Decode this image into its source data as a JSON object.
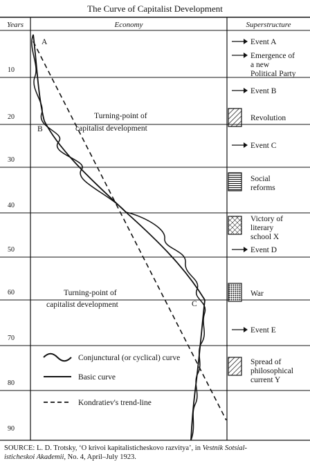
{
  "title": "The Curve of Capitalist Development",
  "headers": {
    "years": "Years",
    "economy": "Economy",
    "superstructure": "Superstructure"
  },
  "year_ticks": [
    "10",
    "20",
    "30",
    "40",
    "50",
    "60",
    "70",
    "80",
    "90"
  ],
  "points": {
    "a": "A",
    "b": "B",
    "c": "C"
  },
  "turning_points": [
    {
      "line1": "Turning-point of",
      "line2": "capitalist development"
    },
    {
      "line1": "Turning-point of",
      "line2": "capitalist development"
    }
  ],
  "events": [
    {
      "lines": [
        "Event A"
      ],
      "marker": "arrow"
    },
    {
      "lines": [
        "Emergence of",
        "a new",
        "Political Party"
      ],
      "marker": "arrow"
    },
    {
      "lines": [
        "Event B"
      ],
      "marker": "arrow"
    },
    {
      "lines": [
        "Revolution"
      ],
      "marker": "box-diagonal"
    },
    {
      "lines": [
        "Event C"
      ],
      "marker": "arrow"
    },
    {
      "lines": [
        "Social",
        "reforms"
      ],
      "marker": "box-horizontal"
    },
    {
      "lines": [
        "Victory of",
        "literary",
        "school X"
      ],
      "marker": "box-crosshatch"
    },
    {
      "lines": [
        "Event D"
      ],
      "marker": "arrow"
    },
    {
      "lines": [
        "War"
      ],
      "marker": "box-dotted"
    },
    {
      "lines": [
        "Event E"
      ],
      "marker": "arrow"
    },
    {
      "lines": [
        "Spread of",
        "philosophical",
        "current Y"
      ],
      "marker": "box-diagonal"
    }
  ],
  "legend": [
    {
      "label": "Conjunctural (or cyclical) curve",
      "style": "wavy"
    },
    {
      "label": "Basic curve",
      "style": "solid"
    },
    {
      "label": "Kondratiev's trend-line",
      "style": "dashed"
    }
  ],
  "source": {
    "label": "SOURCE:",
    "part1": "L. D. Trotsky, ‘O krivoi kapitalisticheskovo razvitya’, in",
    "journal_a": "Vestnik Sotsial-",
    "journal_b": "isticheskoi Akademii",
    "part2": ", No. 4, April–July 1923."
  }
}
